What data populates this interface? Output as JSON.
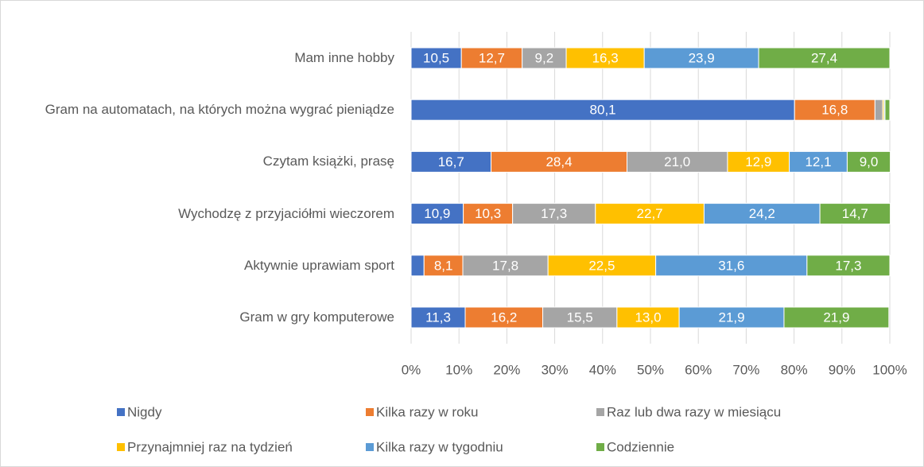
{
  "chart_data": {
    "type": "stacked_barh",
    "categories": [
      "Mam inne hobby",
      "Gram na automatach, na których można wygrać pieniądze",
      "Czytam książki, prasę",
      "Wychodzę z przyjaciółmi wieczorem",
      "Aktywnie uprawiam sport",
      "Gram w gry komputerowe"
    ],
    "series": [
      {
        "name": "Nigdy",
        "color": "#4472c4",
        "values": [
          10.5,
          80.1,
          16.7,
          10.9,
          2.7,
          11.3
        ],
        "value_labels": [
          "10,5",
          "80,1",
          "16,7",
          "10,9",
          null,
          "11,3"
        ]
      },
      {
        "name": "Kilka razy w roku",
        "color": "#ed7d31",
        "values": [
          12.7,
          16.8,
          28.4,
          10.3,
          8.1,
          16.2
        ],
        "value_labels": [
          "12,7",
          "16,8",
          "28,4",
          "10,3",
          "8,1",
          "16,2"
        ]
      },
      {
        "name": "Raz lub dwa razy w miesiącu",
        "color": "#a5a5a5",
        "values": [
          9.2,
          1.6,
          21.0,
          17.3,
          17.8,
          15.5
        ],
        "value_labels": [
          "9,2",
          null,
          "21,0",
          "17,3",
          "17,8",
          "15,5"
        ]
      },
      {
        "name": "Przynajmniej raz na tydzień",
        "color": "#ffc000",
        "values": [
          16.3,
          0.3,
          12.9,
          22.7,
          22.5,
          13.0
        ],
        "value_labels": [
          "16,3",
          null,
          "12,9",
          "22,7",
          "22,5",
          "13,0"
        ]
      },
      {
        "name": "Kilka razy w tygodniu",
        "color": "#5b9bd5",
        "values": [
          23.9,
          0.2,
          12.1,
          24.2,
          31.6,
          21.9
        ],
        "value_labels": [
          "23,9",
          null,
          "12,1",
          "24,2",
          "31,6",
          "21,9"
        ]
      },
      {
        "name": "Codziennie",
        "color": "#70ad47",
        "values": [
          27.4,
          1.0,
          9.0,
          14.7,
          17.3,
          21.9
        ],
        "value_labels": [
          "27,4",
          null,
          "9,0",
          "14,7",
          "17,3",
          "21,9"
        ]
      }
    ],
    "xlim": [
      0,
      100
    ],
    "xticks": [
      {
        "value": 0,
        "label": "0%"
      },
      {
        "value": 10,
        "label": "10%"
      },
      {
        "value": 20,
        "label": "20%"
      },
      {
        "value": 30,
        "label": "30%"
      },
      {
        "value": 40,
        "label": "40%"
      },
      {
        "value": 50,
        "label": "50%"
      },
      {
        "value": 60,
        "label": "60%"
      },
      {
        "value": 70,
        "label": "70%"
      },
      {
        "value": 80,
        "label": "80%"
      },
      {
        "value": 90,
        "label": "90%"
      },
      {
        "value": 100,
        "label": "100%"
      }
    ],
    "grid": true,
    "legend": "bottom"
  }
}
